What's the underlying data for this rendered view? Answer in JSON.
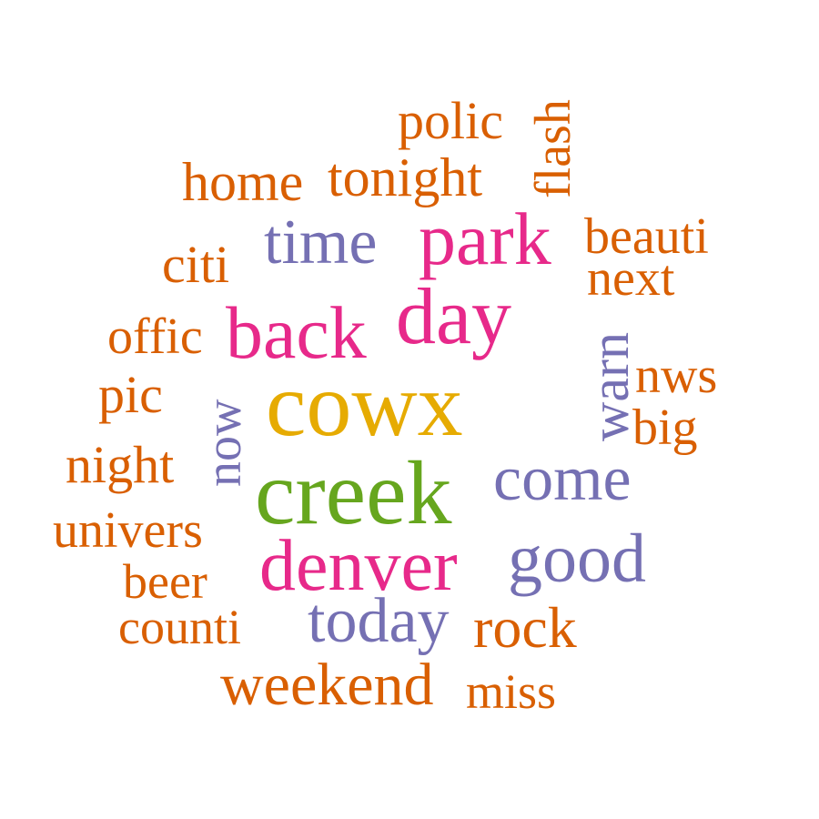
{
  "palette": {
    "orange": "#d95f02",
    "purple": "#7570b3",
    "magenta": "#e7298a",
    "green": "#66a61e",
    "gold": "#e6ab02"
  },
  "words": [
    {
      "text": "polic",
      "color": "orange"
    },
    {
      "text": "flash",
      "color": "orange",
      "orientation": "vertical"
    },
    {
      "text": "home",
      "color": "orange"
    },
    {
      "text": "tonight",
      "color": "orange"
    },
    {
      "text": "beauti",
      "color": "orange"
    },
    {
      "text": "time",
      "color": "purple"
    },
    {
      "text": "park",
      "color": "magenta"
    },
    {
      "text": "citi",
      "color": "orange"
    },
    {
      "text": "next",
      "color": "orange"
    },
    {
      "text": "back",
      "color": "magenta"
    },
    {
      "text": "day",
      "color": "magenta"
    },
    {
      "text": "offic",
      "color": "orange"
    },
    {
      "text": "warn",
      "color": "purple",
      "orientation": "vertical"
    },
    {
      "text": "nws",
      "color": "orange"
    },
    {
      "text": "cowx",
      "color": "gold"
    },
    {
      "text": "pic",
      "color": "orange"
    },
    {
      "text": "now",
      "color": "purple",
      "orientation": "vertical"
    },
    {
      "text": "big",
      "color": "orange"
    },
    {
      "text": "night",
      "color": "orange"
    },
    {
      "text": "come",
      "color": "purple"
    },
    {
      "text": "creek",
      "color": "green"
    },
    {
      "text": "univers",
      "color": "orange"
    },
    {
      "text": "denver",
      "color": "magenta"
    },
    {
      "text": "good",
      "color": "purple"
    },
    {
      "text": "beer",
      "color": "orange"
    },
    {
      "text": "counti",
      "color": "orange"
    },
    {
      "text": "today",
      "color": "purple"
    },
    {
      "text": "rock",
      "color": "orange"
    },
    {
      "text": "weekend",
      "color": "orange"
    },
    {
      "text": "miss",
      "color": "orange"
    }
  ]
}
